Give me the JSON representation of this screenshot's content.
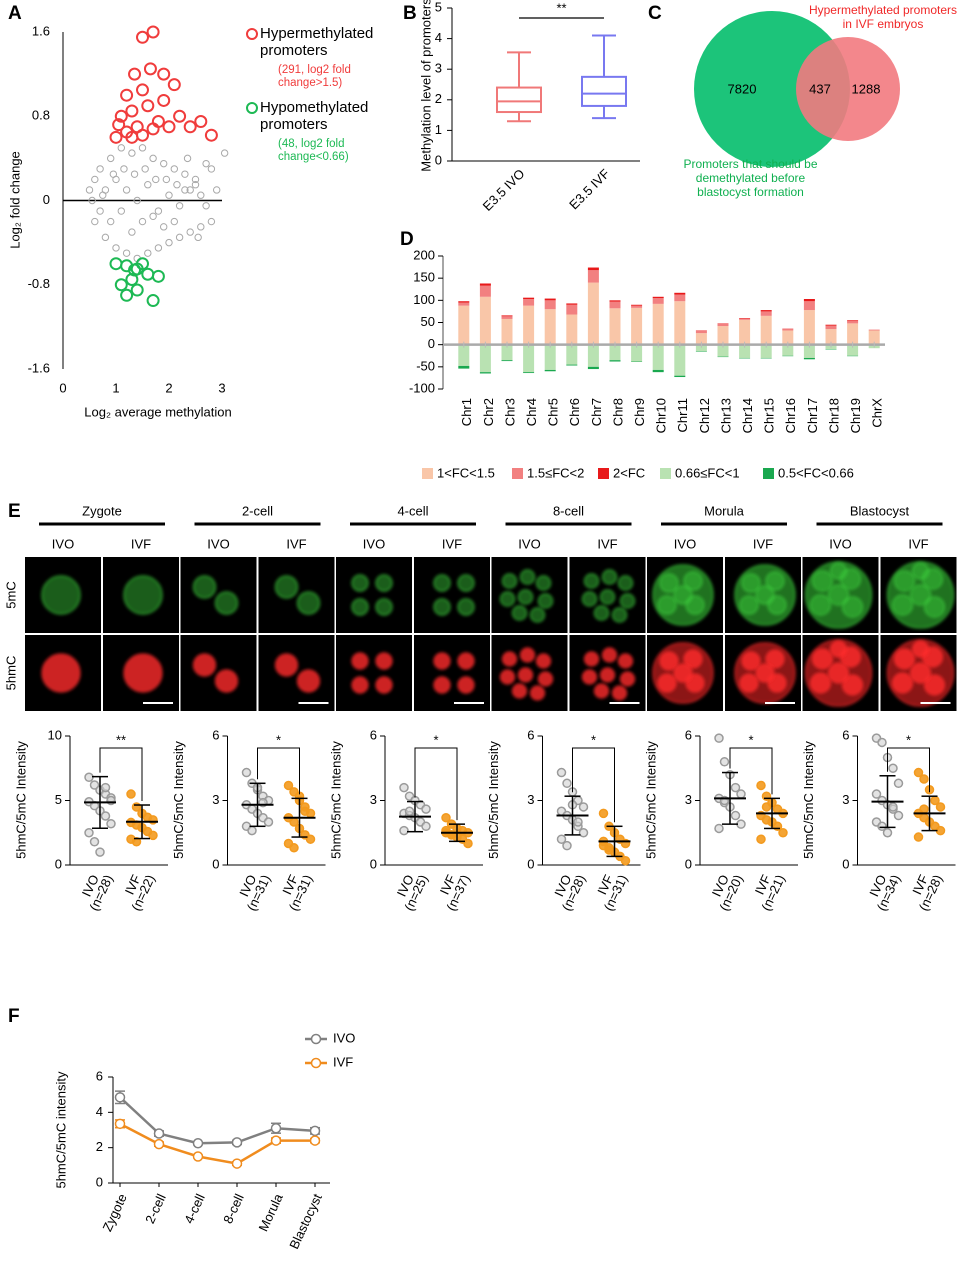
{
  "chart_data": [
    {
      "type": "scatter",
      "panel": "A",
      "xlabel": "Log₂ average methylation",
      "ylabel": "Log₂ fold change",
      "xlim": [
        0,
        3
      ],
      "xticks": [
        0,
        1,
        2,
        3
      ],
      "ylim": [
        -1.6,
        1.6
      ],
      "yticks": [
        -1.6,
        -0.8,
        0,
        0.8,
        1.6
      ],
      "series": [
        {
          "name": "Hypermethylated promoters",
          "note": "(291, log2 fold change>1.5)",
          "color": "#f03c3c",
          "x": [
            1.0,
            1.2,
            1.4,
            1.5,
            1.7,
            1.1,
            1.3,
            1.6,
            1.8,
            2.0,
            1.2,
            1.5,
            1.9,
            2.2,
            2.4,
            1.05,
            1.35,
            1.65,
            2.1,
            2.6,
            2.8,
            1.5,
            1.7,
            1.3,
            1.9
          ],
          "values": [
            0.6,
            0.65,
            0.7,
            0.62,
            0.68,
            0.8,
            0.85,
            0.9,
            0.75,
            0.7,
            1.0,
            1.05,
            0.95,
            0.8,
            0.7,
            0.72,
            1.2,
            1.25,
            1.1,
            0.75,
            0.62,
            1.55,
            1.6,
            0.6,
            1.2
          ]
        },
        {
          "name": "Hypomethylated promoters",
          "note": "(48, log2 fold change<0.66)",
          "color": "#1db954",
          "x": [
            1.0,
            1.2,
            1.4,
            1.6,
            1.3,
            1.5,
            1.1,
            1.8,
            1.7,
            1.2,
            1.4,
            1.35
          ],
          "values": [
            -0.6,
            -0.62,
            -0.65,
            -0.7,
            -0.75,
            -0.6,
            -0.8,
            -0.72,
            -0.95,
            -0.9,
            -0.85,
            -0.66
          ]
        },
        {
          "color": "#a8a8a8",
          "x": [
            0.5,
            0.6,
            0.7,
            0.8,
            0.9,
            1.0,
            1.1,
            1.2,
            1.3,
            1.4,
            1.5,
            1.6,
            1.7,
            1.8,
            1.9,
            2.0,
            2.1,
            2.2,
            2.3,
            2.4,
            2.5,
            2.6,
            2.7,
            2.8,
            2.9,
            3.05,
            0.6,
            0.8,
            1.0,
            1.2,
            1.4,
            1.6,
            1.8,
            2.0,
            2.2,
            2.4,
            2.6,
            2.8,
            0.7,
            0.9,
            1.1,
            1.3,
            1.5,
            1.7,
            1.9,
            2.1,
            2.3,
            2.5,
            2.7,
            0.55,
            0.75,
            0.95,
            1.15,
            1.35,
            1.55,
            1.75,
            1.95,
            2.15,
            2.35,
            2.55
          ],
          "values": [
            0.1,
            -0.2,
            0.3,
            -0.35,
            0.4,
            -0.45,
            0.5,
            -0.5,
            0.45,
            -0.55,
            0.5,
            -0.5,
            0.4,
            -0.45,
            0.35,
            -0.4,
            0.3,
            -0.35,
            0.25,
            -0.3,
            0.2,
            -0.25,
            0.35,
            -0.2,
            0.1,
            0.45,
            0.2,
            0.1,
            0.2,
            0.1,
            0.0,
            0.15,
            -0.1,
            0.05,
            -0.05,
            0.1,
            0.05,
            0.3,
            -0.1,
            -0.2,
            -0.1,
            -0.3,
            -0.2,
            -0.15,
            -0.25,
            -0.2,
            0.1,
            0.15,
            -0.05,
            0.0,
            0.05,
            0.25,
            0.3,
            0.25,
            0.3,
            0.2,
            0.2,
            0.15,
            0.4,
            -0.35
          ]
        }
      ]
    },
    {
      "type": "box",
      "panel": "B",
      "ylabel": "Methylation level of promoters",
      "categories": [
        "E3.5 IVO",
        "E3.5 IVF"
      ],
      "colors": [
        "#f07878",
        "#7878f0"
      ],
      "ylim": [
        0,
        5
      ],
      "yticks": [
        0,
        1,
        2,
        3,
        4,
        5
      ],
      "annotation": "**",
      "boxes": [
        {
          "min": 1.3,
          "q1": 1.6,
          "median": 1.95,
          "q3": 2.4,
          "max": 3.55
        },
        {
          "min": 1.4,
          "q1": 1.8,
          "median": 2.2,
          "q3": 2.75,
          "max": 4.1
        }
      ]
    },
    {
      "type": "venn",
      "panel": "C",
      "sets": [
        "Promoters that should be demethylated before blastocyst formation",
        "Hypermethylated promoters in IVF embryos"
      ],
      "colors": [
        "#1cc47a",
        "#f27a80"
      ],
      "values": [
        7820,
        437,
        1288
      ]
    },
    {
      "type": "stacked_bar",
      "panel": "D",
      "categories": [
        "Chr1",
        "Chr2",
        "Chr3",
        "Chr4",
        "Chr5",
        "Chr6",
        "Chr7",
        "Chr8",
        "Chr9",
        "Chr10",
        "Chr11",
        "Chr12",
        "Chr13",
        "Chr14",
        "Chr15",
        "Chr16",
        "Chr17",
        "Chr18",
        "Chr19",
        "ChrX"
      ],
      "ylim": [
        -100,
        200
      ],
      "yticks": [
        -100,
        -50,
        0,
        50,
        100,
        150,
        200
      ],
      "series": [
        {
          "name": "1<FC<1.5",
          "color": "#f9c6a8",
          "values": [
            88,
            108,
            58,
            88,
            80,
            68,
            140,
            82,
            83,
            92,
            98,
            26,
            42,
            56,
            65,
            32,
            78,
            35,
            48,
            32
          ]
        },
        {
          "name": "1.5≤FC<2",
          "color": "#f28080",
          "values": [
            7,
            25,
            6,
            15,
            20,
            22,
            28,
            15,
            5,
            13,
            15,
            5,
            5,
            3,
            10,
            3,
            20,
            8,
            5,
            2
          ]
        },
        {
          "name": "2<FC",
          "color": "#e8191a",
          "values": [
            3,
            5,
            2,
            3,
            4,
            3,
            6,
            3,
            2,
            3,
            4,
            1,
            1,
            1,
            3,
            1,
            5,
            2,
            2,
            0
          ]
        },
        {
          "name": "0.66≤FC<1",
          "color": "#b9e2b2",
          "values": [
            -48,
            -62,
            -35,
            -62,
            -57,
            -45,
            -50,
            -35,
            -38,
            -57,
            -70,
            -15,
            -27,
            -30,
            -30,
            -25,
            -30,
            -10,
            -25,
            -8
          ]
        },
        {
          "name": "0.5<FC<0.66",
          "color": "#1aa84f",
          "values": [
            -6,
            -3,
            -2,
            -2,
            -3,
            -2,
            -5,
            -3,
            -1,
            -5,
            -3,
            -1,
            -1,
            -1,
            -1,
            -1,
            -3,
            -1,
            -1,
            0
          ]
        }
      ]
    },
    {
      "type": "strip",
      "ylabel": "5hmC/5mC Intensity",
      "categories": [
        "IVO",
        "IVF"
      ],
      "n_labels": [
        "(n=28)",
        "(n=22)"
      ],
      "significance": "**",
      "ylim": [
        0,
        10
      ],
      "yticks": [
        0,
        5,
        10
      ],
      "colors": [
        "#9a9a9a",
        "#f39a1e"
      ],
      "means": [
        4.85,
        3.35
      ],
      "sd": [
        2.0,
        1.3
      ],
      "points": [
        [
          6.8,
          6.2,
          5.8,
          5.5,
          5.2,
          4.9,
          4.6,
          4.2,
          3.8,
          3.2,
          2.5,
          1.8,
          1.0,
          6.0,
          5.0
        ],
        [
          5.5,
          4.5,
          4.0,
          3.7,
          3.5,
          3.3,
          3.1,
          2.9,
          2.6,
          2.3,
          2.0,
          1.8
        ]
      ]
    },
    {
      "type": "strip",
      "ylabel": "5hmC/5mC Intensity",
      "categories": [
        "IVO",
        "IVF"
      ],
      "n_labels": [
        "(n=31)",
        "(n=31)"
      ],
      "significance": "*",
      "ylim": [
        0,
        6
      ],
      "yticks": [
        0,
        3,
        6
      ],
      "colors": [
        "#9a9a9a",
        "#f39a1e"
      ],
      "means": [
        2.8,
        2.2
      ],
      "sd": [
        1.0,
        0.9
      ],
      "points": [
        [
          4.3,
          3.8,
          3.5,
          3.2,
          3.0,
          2.8,
          2.6,
          2.4,
          2.2,
          2.0,
          1.8,
          1.6,
          3.6,
          2.9
        ],
        [
          3.7,
          3.4,
          3.0,
          2.7,
          2.4,
          2.2,
          2.0,
          1.7,
          1.4,
          1.2,
          1.0,
          0.8,
          3.2,
          2.5
        ]
      ]
    },
    {
      "type": "strip",
      "ylabel": "5hmC/5mC Intensity",
      "categories": [
        "IVO",
        "IVF"
      ],
      "n_labels": [
        "(n=25)",
        "(n=37)"
      ],
      "significance": "*",
      "ylim": [
        0,
        6
      ],
      "yticks": [
        0,
        3,
        6
      ],
      "colors": [
        "#9a9a9a",
        "#f39a1e"
      ],
      "means": [
        2.25,
        1.5
      ],
      "sd": [
        0.7,
        0.4
      ],
      "points": [
        [
          3.6,
          3.2,
          3.0,
          2.8,
          2.6,
          2.4,
          2.3,
          2.2,
          2.0,
          1.8,
          1.6,
          2.5
        ],
        [
          2.2,
          1.9,
          1.7,
          1.6,
          1.5,
          1.5,
          1.4,
          1.3,
          1.2,
          1.0,
          1.6,
          1.4
        ]
      ]
    },
    {
      "type": "strip",
      "ylabel": "5hmC/5mC Intensity",
      "categories": [
        "IVO",
        "IVF"
      ],
      "n_labels": [
        "(n=28)",
        "(n=31)"
      ],
      "significance": "*",
      "ylim": [
        0,
        6
      ],
      "yticks": [
        0,
        3,
        6
      ],
      "colors": [
        "#9a9a9a",
        "#f39a1e"
      ],
      "means": [
        2.3,
        1.1
      ],
      "sd": [
        0.9,
        0.7
      ],
      "points": [
        [
          4.3,
          3.8,
          3.4,
          3.0,
          2.7,
          2.5,
          2.3,
          2.1,
          1.8,
          1.5,
          1.2,
          0.9,
          2.8,
          2.0
        ],
        [
          2.4,
          1.8,
          1.5,
          1.2,
          1.0,
          0.9,
          0.8,
          0.6,
          0.4,
          0.2,
          1.1,
          0.7
        ]
      ]
    },
    {
      "type": "strip",
      "ylabel": "5hmC/5mC Intensity",
      "categories": [
        "IVO",
        "IVF"
      ],
      "n_labels": [
        "(n=20)",
        "(n=21)"
      ],
      "significance": "*",
      "ylim": [
        0,
        6
      ],
      "yticks": [
        0,
        3,
        6
      ],
      "colors": [
        "#9a9a9a",
        "#f39a1e"
      ],
      "means": [
        3.1,
        2.4
      ],
      "sd": [
        1.2,
        0.7
      ],
      "points": [
        [
          5.9,
          4.8,
          4.2,
          3.6,
          3.3,
          3.1,
          2.9,
          2.7,
          2.3,
          1.9,
          1.7,
          3.0
        ],
        [
          3.7,
          3.2,
          2.9,
          2.6,
          2.4,
          2.3,
          2.1,
          2.0,
          1.8,
          1.5,
          1.2,
          2.7
        ]
      ]
    },
    {
      "type": "strip",
      "ylabel": "5hmC/5mC Intensity",
      "categories": [
        "IVO",
        "IVF"
      ],
      "n_labels": [
        "(n=34)",
        "(n=28)"
      ],
      "significance": "*",
      "ylim": [
        0,
        6
      ],
      "yticks": [
        0,
        3,
        6
      ],
      "colors": [
        "#9a9a9a",
        "#f39a1e"
      ],
      "means": [
        2.95,
        2.4
      ],
      "sd": [
        1.2,
        0.8
      ],
      "points": [
        [
          5.9,
          5.7,
          5.0,
          4.5,
          3.8,
          3.3,
          3.0,
          2.8,
          2.6,
          2.3,
          2.0,
          1.8,
          1.5,
          2.7
        ],
        [
          4.3,
          4.0,
          3.5,
          3.0,
          2.7,
          2.4,
          2.2,
          2.0,
          1.8,
          1.6,
          1.3,
          2.6
        ]
      ]
    },
    {
      "type": "line",
      "panel": "F",
      "ylabel": "5hmC/5mC intensity",
      "categories": [
        "Zygote",
        "2-cell",
        "4-cell",
        "8-cell",
        "Morula",
        "Blastocyst"
      ],
      "ylim": [
        0,
        6
      ],
      "yticks": [
        0,
        2,
        4,
        6
      ],
      "series": [
        {
          "name": "IVO",
          "color": "#808080",
          "values": [
            4.85,
            2.8,
            2.25,
            2.3,
            3.1,
            2.95
          ],
          "errors": [
            0.35,
            0.15,
            0.05,
            0.12,
            0.28,
            0.18
          ]
        },
        {
          "name": "IVF",
          "color": "#f08c1e",
          "values": [
            3.35,
            2.2,
            1.5,
            1.1,
            2.4,
            2.4
          ],
          "errors": [
            0.22,
            0.12,
            0.05,
            0.1,
            0.15,
            0.12
          ]
        }
      ]
    }
  ],
  "figure_e": {
    "panel": "E",
    "stages": [
      "Zygote",
      "2-cell",
      "4-cell",
      "8-cell",
      "Morula",
      "Blastocyst"
    ],
    "groups": [
      "IVO",
      "IVF"
    ],
    "rows": [
      "5mC",
      "5hmC"
    ]
  }
}
